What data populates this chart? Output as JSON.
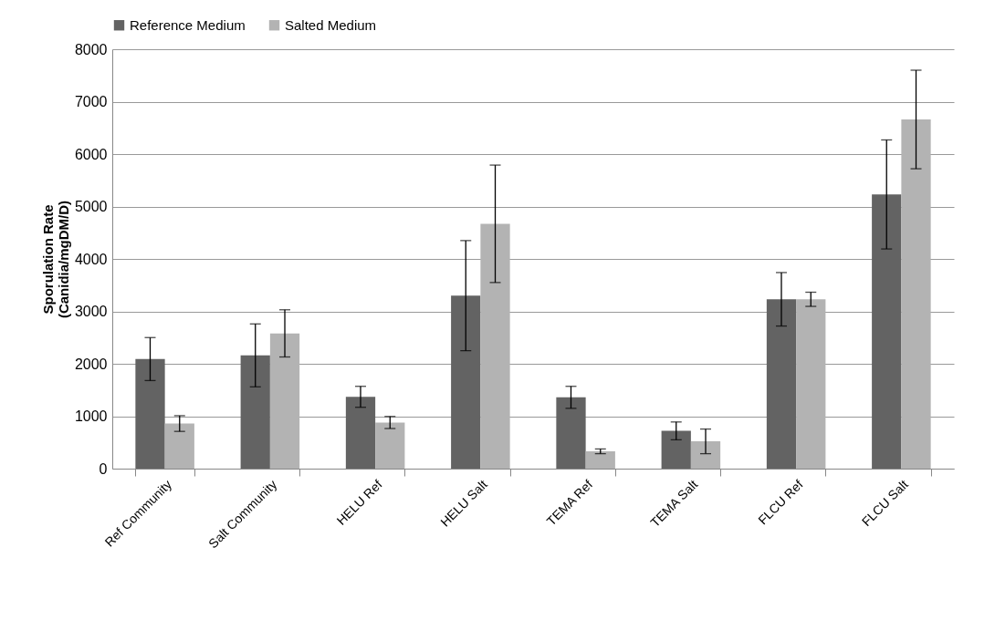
{
  "chart_data": {
    "type": "bar",
    "ylabel": "Sporulation Rate\n(Canidia/mgDM/D)",
    "categories": [
      "Ref Community",
      "Salt Community",
      "HELU Ref",
      "HELU Salt",
      "TEMA Ref",
      "TEMA Salt",
      "FLCU Ref",
      "FLCU Salt"
    ],
    "series": [
      {
        "name": "Reference Medium",
        "color": "#636363",
        "values": [
          2090,
          2160,
          1370,
          3300,
          1360,
          720,
          3230,
          5230
        ],
        "errors": [
          410,
          600,
          200,
          1050,
          210,
          170,
          510,
          1040
        ]
      },
      {
        "name": "Salted Medium",
        "color": "#b3b3b3",
        "values": [
          860,
          2580,
          880,
          4670,
          330,
          520,
          3230,
          6660
        ],
        "errors": [
          150,
          450,
          115,
          1120,
          45,
          235,
          135,
          940
        ]
      }
    ],
    "ylim": [
      0,
      8000
    ],
    "yticks": [
      0,
      1000,
      2000,
      3000,
      4000,
      5000,
      6000,
      7000,
      8000
    ],
    "grid": "y",
    "legend": "top"
  }
}
